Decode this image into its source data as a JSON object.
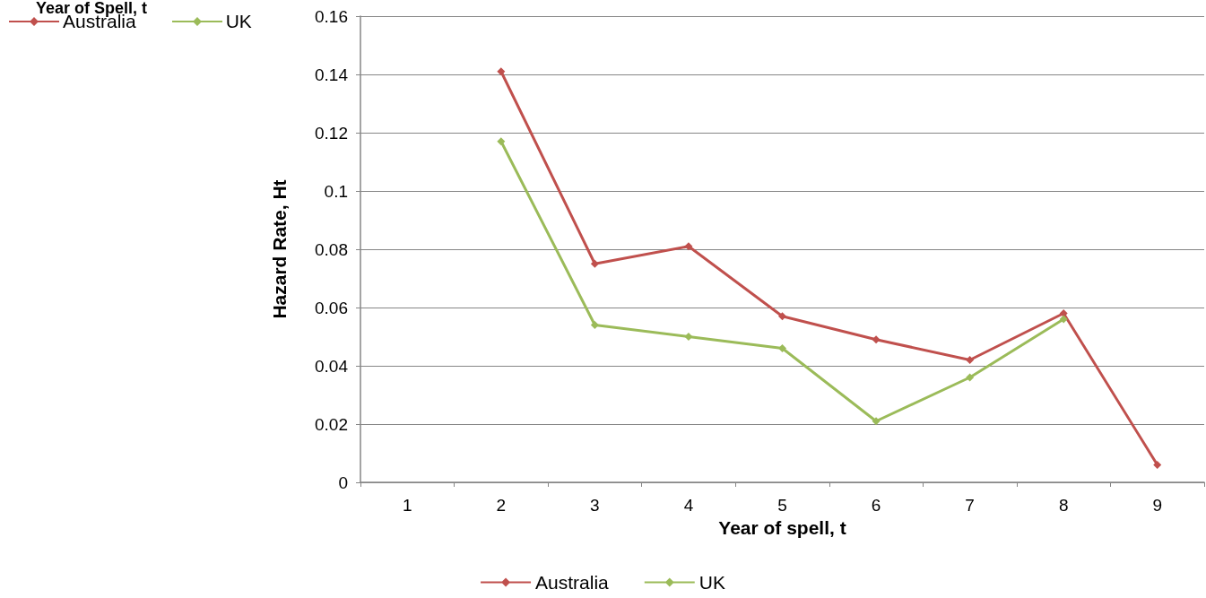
{
  "chart_data": {
    "type": "line",
    "xlabel": "Year of spell, t",
    "ylabel": "Hazard Rate, Ht",
    "annotations": [
      "Year of Spell, t"
    ],
    "categories": [
      "1",
      "2",
      "3",
      "4",
      "5",
      "6",
      "7",
      "8",
      "9"
    ],
    "series": [
      {
        "name": "Australia",
        "color": "#c0504d",
        "values": [
          null,
          0.141,
          0.075,
          0.081,
          0.057,
          0.049,
          0.042,
          0.058,
          0.006
        ]
      },
      {
        "name": "UK",
        "color": "#9bbb59",
        "values": [
          null,
          0.117,
          0.054,
          0.05,
          0.046,
          0.021,
          0.036,
          0.056,
          null
        ]
      }
    ],
    "ylim": [
      0,
      0.16
    ],
    "yticks": [
      0,
      0.02,
      0.04,
      0.06,
      0.08,
      0.1,
      0.12,
      0.14,
      0.16
    ],
    "grid": "y",
    "legend": [
      "top left",
      "bottom"
    ],
    "marker": "diamond",
    "line_style": "solid"
  }
}
